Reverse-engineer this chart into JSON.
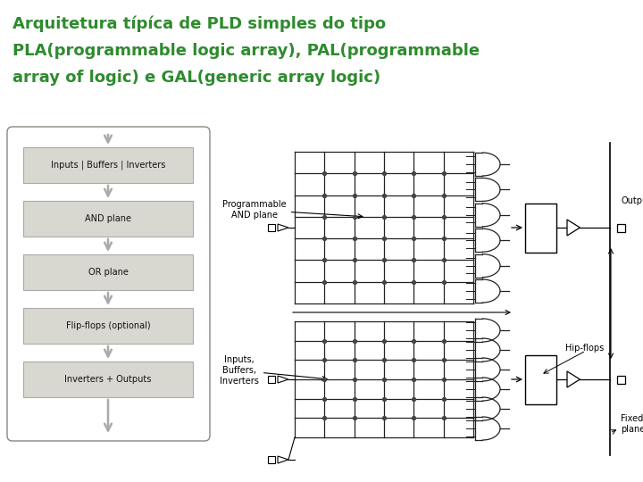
{
  "title_line1": "Arquitetura típíca de PLD simples do tipo",
  "title_line2": "PLA(programmable logic array), PAL(programmable",
  "title_line3": "array of logic) e GAL(generic array logic)",
  "title_color": "#2e8b2e",
  "left_blocks": [
    "Inputs | Buffers | Inverters",
    "AND plane",
    "OR plane",
    "Flip-flops (optional)",
    "Inverters + Outputs"
  ],
  "block_facecolor": "#d8d8d0",
  "block_edgecolor": "#888880",
  "outer_box_color": "#888880",
  "arrow_color": "#aaaaaa",
  "grid_color": "#222222",
  "dot_color": "#444444",
  "gate_color": "#222222",
  "label_prog_and": "Programmable\nAND plane",
  "label_inputs": "Inputs,\nBuffers,\nInverters",
  "label_hipflops": "Hip-flops",
  "label_outputs": "Outputs",
  "label_fixed_or": "Fixed OR\nplane"
}
